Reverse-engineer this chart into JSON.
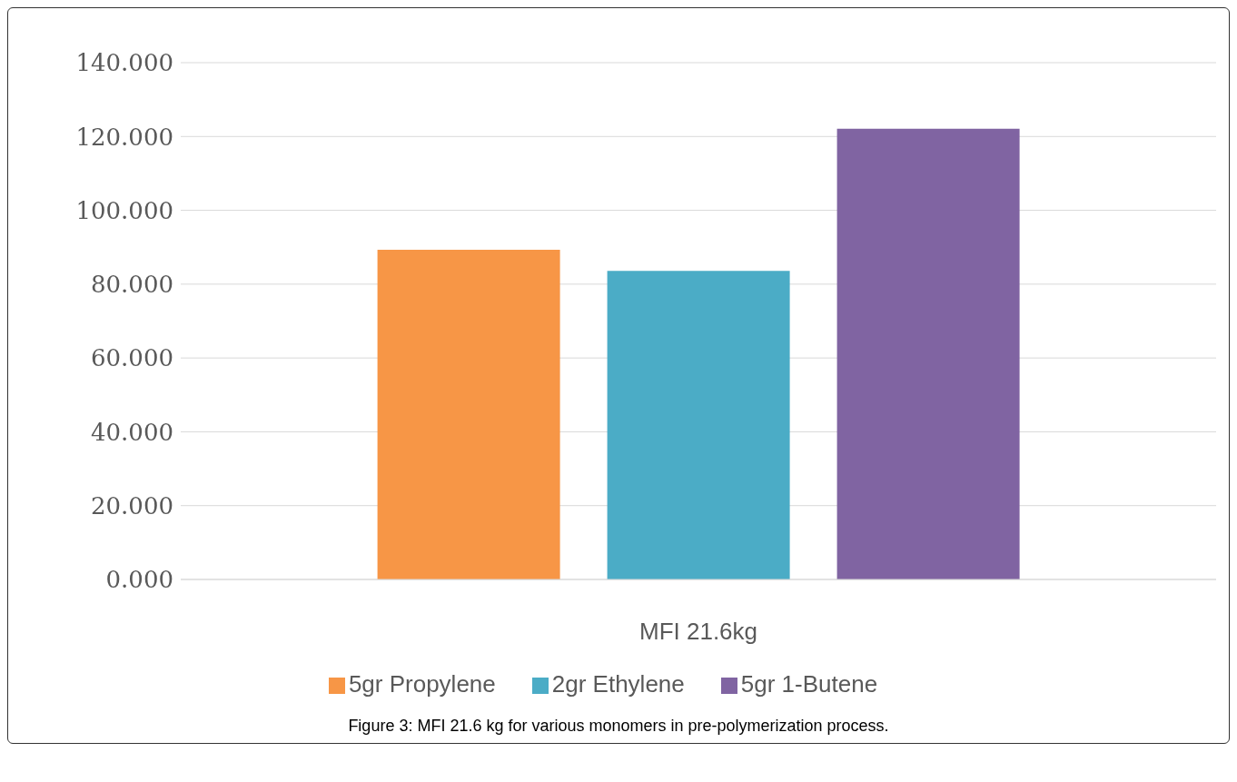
{
  "chart_data": {
    "type": "bar",
    "categories": [
      "MFI 21.6kg"
    ],
    "series": [
      {
        "name": "5gr Propylene",
        "color": "#f79646",
        "values": [
          89.3
        ]
      },
      {
        "name": "2gr Ethylene",
        "color": "#4bacc6",
        "values": [
          83.6
        ]
      },
      {
        "name": "5gr 1-Butene",
        "color": "#8064a2",
        "values": [
          122.1
        ]
      }
    ],
    "ylim": [
      0,
      140
    ],
    "yticks": [
      {
        "value": 0,
        "label": "0.000"
      },
      {
        "value": 20,
        "label": "20.000"
      },
      {
        "value": 40,
        "label": "40.000"
      },
      {
        "value": 60,
        "label": "60.000"
      },
      {
        "value": 80,
        "label": "80.000"
      },
      {
        "value": 100,
        "label": "100.000"
      },
      {
        "value": 120,
        "label": "120.000"
      },
      {
        "value": 140,
        "label": "140.000"
      }
    ],
    "grid": "y",
    "legend": "bottom",
    "annotations": [
      "Figure 3: MFI 21.6 kg for various monomers in pre-polymerization process."
    ]
  }
}
